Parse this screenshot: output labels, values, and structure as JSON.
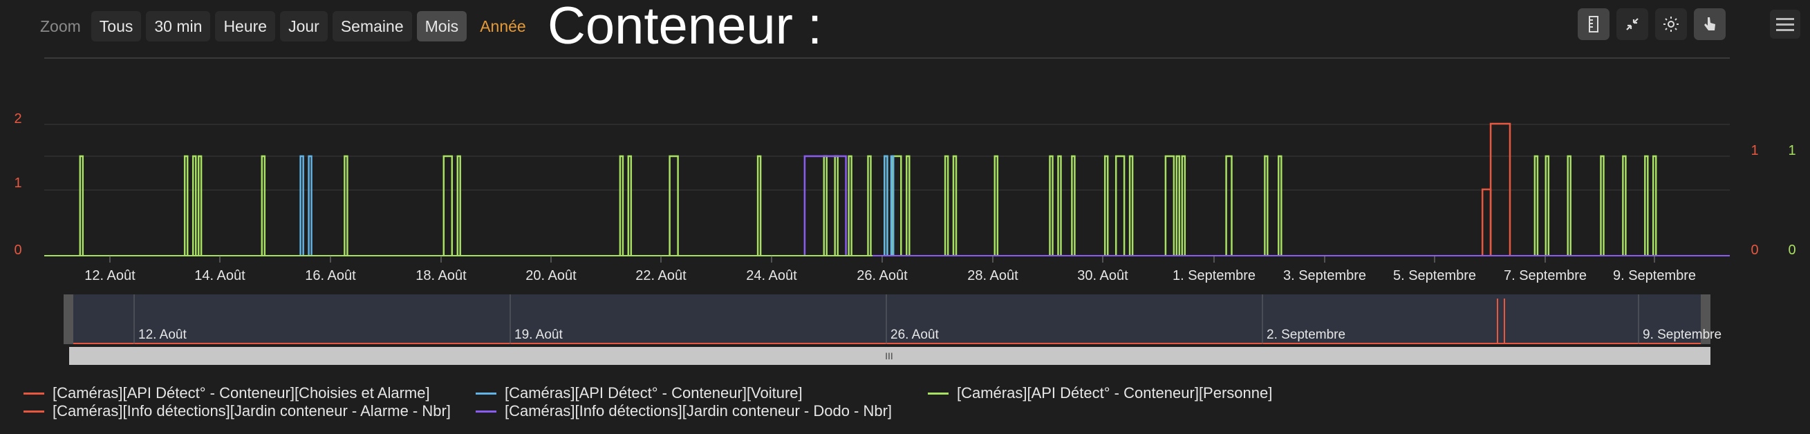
{
  "toolbar": {
    "zoom_label": "Zoom",
    "buttons": [
      "Tous",
      "30 min",
      "Heure",
      "Jour",
      "Semaine",
      "Mois",
      "Année"
    ],
    "active": "Mois",
    "highlight": "Année"
  },
  "title": "Conteneur :",
  "tools": [
    "ruler-icon",
    "compress-icon",
    "brightness-icon",
    "pointer-icon"
  ],
  "colors": {
    "alarme": "#e8573f",
    "voiture": "#62b4e6",
    "personne": "#a8e061",
    "nbr": "#e8573f",
    "dodo": "#8a5cf0",
    "axis_left": "#e8573f",
    "axis_right1": "#e8573f",
    "axis_right2": "#a8e061"
  },
  "chart_data": {
    "type": "line",
    "x_start": "2024-08-10",
    "x_end": "2024-09-11",
    "x_ticks": [
      "12. Août",
      "14. Août",
      "16. Août",
      "18. Août",
      "20. Août",
      "22. Août",
      "24. Août",
      "26. Août",
      "28. Août",
      "30. Août",
      "1. Septembre",
      "3. Septembre",
      "5. Septembre",
      "7. Septembre",
      "9. Septembre"
    ],
    "left_axis_ticks": [
      "0",
      "1",
      "2"
    ],
    "right_axis1_ticks": [
      "0",
      "1"
    ],
    "right_axis2_ticks": [
      "0",
      "1"
    ],
    "series": [
      {
        "name": "[Caméras][API Détect° - Conteneur][Personne]",
        "color_key": "personne",
        "pulses": [
          [
            10.9,
            10.95
          ],
          [
            12.8,
            12.85
          ],
          [
            12.95,
            13.0
          ],
          [
            13.05,
            13.1
          ],
          [
            14.2,
            14.25
          ],
          [
            15.7,
            15.75
          ],
          [
            17.5,
            17.65
          ],
          [
            17.75,
            17.8
          ],
          [
            20.7,
            20.75
          ],
          [
            20.85,
            20.9
          ],
          [
            21.6,
            21.75
          ],
          [
            23.2,
            23.25
          ],
          [
            24.4,
            24.45
          ],
          [
            24.6,
            24.65
          ],
          [
            24.85,
            24.9
          ],
          [
            25.2,
            25.25
          ],
          [
            25.5,
            25.55
          ],
          [
            25.65,
            25.8
          ],
          [
            25.9,
            25.95
          ],
          [
            26.6,
            26.65
          ],
          [
            26.75,
            26.8
          ],
          [
            27.5,
            27.55
          ],
          [
            28.5,
            28.55
          ],
          [
            28.65,
            28.7
          ],
          [
            28.9,
            28.95
          ],
          [
            29.5,
            29.55
          ],
          [
            29.7,
            29.85
          ],
          [
            29.95,
            30.0
          ],
          [
            30.6,
            30.75
          ],
          [
            30.8,
            30.85
          ],
          [
            30.9,
            30.95
          ],
          [
            31.7,
            31.8
          ],
          [
            32.4,
            32.45
          ],
          [
            32.65,
            32.7
          ],
          [
            37.3,
            37.35
          ],
          [
            37.5,
            37.55
          ],
          [
            37.9,
            37.95
          ],
          [
            38.5,
            38.55
          ],
          [
            38.9,
            38.95
          ],
          [
            39.3,
            39.35
          ],
          [
            39.45,
            39.5
          ]
        ]
      },
      {
        "name": "[Caméras][API Détect° - Conteneur][Voiture]",
        "color_key": "voiture",
        "pulses": [
          [
            14.9,
            14.95
          ],
          [
            15.05,
            15.1
          ],
          [
            25.5,
            25.55
          ],
          [
            25.62,
            25.66
          ]
        ]
      },
      {
        "name": "[Caméras][Info détections][Jardin conteneur - Dodo - Nbr]",
        "color_key": "dodo",
        "pulses": [
          [
            24.05,
            24.8
          ]
        ]
      },
      {
        "name": "[Caméras][API Détect° - Conteneur][Choisies et Alarme]",
        "color_key": "alarme",
        "pulses": [
          [
            36.35,
            36.5
          ]
        ]
      },
      {
        "name": "[Caméras][Info détections][Jardin conteneur - Alarme - Nbr]",
        "color_key": "nbr",
        "pulses": [
          [
            36.5,
            36.85
          ]
        ]
      }
    ],
    "navigator_ticks": [
      "12. Août",
      "19. Août",
      "26. Août",
      "2. Septembre",
      "9. Septembre"
    ]
  },
  "legend": [
    {
      "label": "[Caméras][API Détect° - Conteneur][Choisies et Alarme]",
      "color_key": "alarme"
    },
    {
      "label": "[Caméras][API Détect° - Conteneur][Voiture]",
      "color_key": "voiture"
    },
    {
      "label": "[Caméras][API Détect° - Conteneur][Personne]",
      "color_key": "personne"
    },
    {
      "label": "[Caméras][Info détections][Jardin conteneur - Alarme - Nbr]",
      "color_key": "nbr"
    },
    {
      "label": "[Caméras][Info détections][Jardin conteneur - Dodo - Nbr]",
      "color_key": "dodo"
    }
  ],
  "scrollbar_grip": "III"
}
